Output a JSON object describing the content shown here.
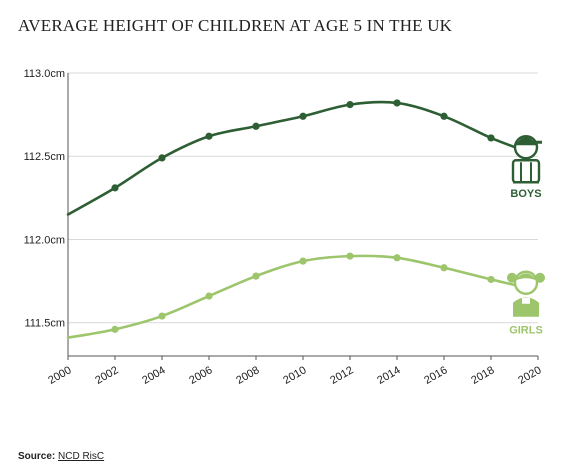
{
  "chart_data": {
    "type": "line",
    "title": "AVERAGE HEIGHT OF CHILDREN AT AGE 5 IN THE UK",
    "xlabel": "",
    "ylabel": "",
    "x": [
      2000,
      2002,
      2004,
      2006,
      2008,
      2010,
      2012,
      2014,
      2016,
      2018,
      2020
    ],
    "x_tick_labels": [
      "2000",
      "2002",
      "2004",
      "2006",
      "2008",
      "2010",
      "2012",
      "2014",
      "2016",
      "2018",
      "2020"
    ],
    "xlim": [
      2000,
      2020
    ],
    "ylim": [
      111.3,
      113.0
    ],
    "y_ticks": [
      111.5,
      112.0,
      112.5,
      113.0
    ],
    "y_tick_labels": [
      "111.5cm",
      "112.0cm",
      "112.5cm",
      "113.0cm"
    ],
    "grid": true,
    "series": [
      {
        "name": "BOYS",
        "color": "#2e5e34",
        "icon": "boy-icon",
        "x": [
          2000,
          2002,
          2004,
          2006,
          2008,
          2010,
          2012,
          2014,
          2016,
          2018,
          2019.5
        ],
        "values": [
          112.15,
          112.31,
          112.49,
          112.62,
          112.68,
          112.74,
          112.81,
          112.82,
          112.74,
          112.61,
          112.53
        ],
        "markers": [
          2002,
          2004,
          2006,
          2008,
          2010,
          2012,
          2014,
          2016,
          2018
        ]
      },
      {
        "name": "GIRLS",
        "color": "#9dc56c",
        "icon": "girl-icon",
        "x": [
          2000,
          2002,
          2004,
          2006,
          2008,
          2010,
          2012,
          2014,
          2016,
          2018,
          2019.5
        ],
        "values": [
          111.41,
          111.46,
          111.54,
          111.66,
          111.78,
          111.87,
          111.9,
          111.89,
          111.83,
          111.76,
          111.71
        ],
        "markers": [
          2002,
          2004,
          2006,
          2008,
          2010,
          2012,
          2014,
          2016,
          2018
        ]
      }
    ]
  },
  "source": {
    "label": "Source:",
    "text": "NCD RisC"
  }
}
